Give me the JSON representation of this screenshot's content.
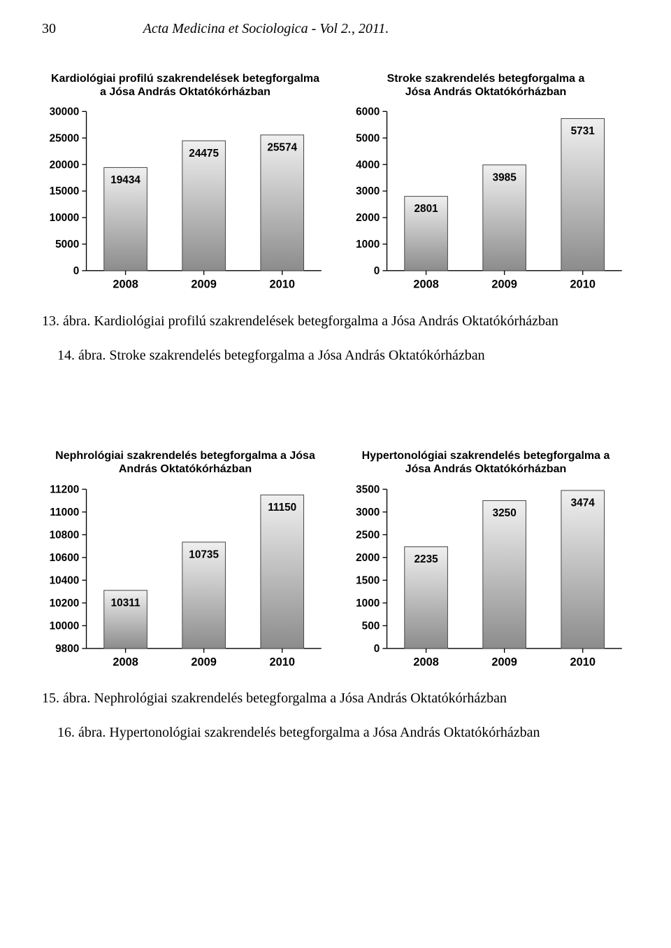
{
  "page": {
    "number": "30",
    "running_title": "Acta Medicina et Sociologica - Vol 2., 2011."
  },
  "captions": {
    "c13": "13. ábra. Kardiológiai profilú szakrendelések betegforgalma a Jósa András Oktatókórházban",
    "c14": "14. ábra. Stroke szakrendelés betegforgalma a Jósa András Oktatókórházban",
    "c15": "15. ábra. Nephrológiai szakrendelés betegforgalma a Jósa András Oktatókórházban",
    "c16": "16. ábra. Hypertonológiai szakrendelés betegforgalma a Jósa András Oktatókórházban"
  },
  "charts": {
    "chart1": {
      "type": "bar",
      "title": "Kardiológiai profilú szakrendelések betegforgalma\na Jósa András Oktatókórházban",
      "categories": [
        "2008",
        "2009",
        "2010"
      ],
      "values": [
        19434,
        24475,
        25574
      ],
      "ylim": [
        0,
        30000
      ],
      "ytick_step": 5000,
      "bar_fill_top": "#f0f0f0",
      "bar_fill_bottom": "#8c8c8c",
      "bar_border": "#4a4a4a",
      "plot_bg": "#ffffff",
      "axis_color": "#000000",
      "title_fontsize": 16,
      "label_fontsize": 15,
      "bar_width": 0.55
    },
    "chart2": {
      "type": "bar",
      "title": "Stroke szakrendelés betegforgalma a\nJósa András Oktatókórházban",
      "categories": [
        "2008",
        "2009",
        "2010"
      ],
      "values": [
        2801,
        3985,
        5731
      ],
      "ylim": [
        0,
        6000
      ],
      "ytick_step": 1000,
      "bar_fill_top": "#f0f0f0",
      "bar_fill_bottom": "#8c8c8c",
      "bar_border": "#4a4a4a",
      "plot_bg": "#ffffff",
      "axis_color": "#000000",
      "title_fontsize": 16,
      "label_fontsize": 15,
      "bar_width": 0.55
    },
    "chart3": {
      "type": "bar",
      "title": "Nephrológiai szakrendelés betegforgalma a Jósa\nAndrás Oktatókórházban",
      "categories": [
        "2008",
        "2009",
        "2010"
      ],
      "values": [
        10311,
        10735,
        11150
      ],
      "ylim": [
        9800,
        11200
      ],
      "ytick_step": 200,
      "bar_fill_top": "#f0f0f0",
      "bar_fill_bottom": "#8c8c8c",
      "bar_border": "#4a4a4a",
      "plot_bg": "#ffffff",
      "axis_color": "#000000",
      "title_fontsize": 16,
      "label_fontsize": 15,
      "bar_width": 0.55
    },
    "chart4": {
      "type": "bar",
      "title": "Hypertonológiai szakrendelés betegforgalma a\nJósa András Oktatókórházban",
      "categories": [
        "2008",
        "2009",
        "2010"
      ],
      "values": [
        2235,
        3250,
        3474
      ],
      "ylim": [
        0,
        3500
      ],
      "ytick_step": 500,
      "bar_fill_top": "#f0f0f0",
      "bar_fill_bottom": "#8c8c8c",
      "bar_border": "#4a4a4a",
      "plot_bg": "#ffffff",
      "axis_color": "#000000",
      "title_fontsize": 16,
      "label_fontsize": 15,
      "bar_width": 0.55
    }
  }
}
